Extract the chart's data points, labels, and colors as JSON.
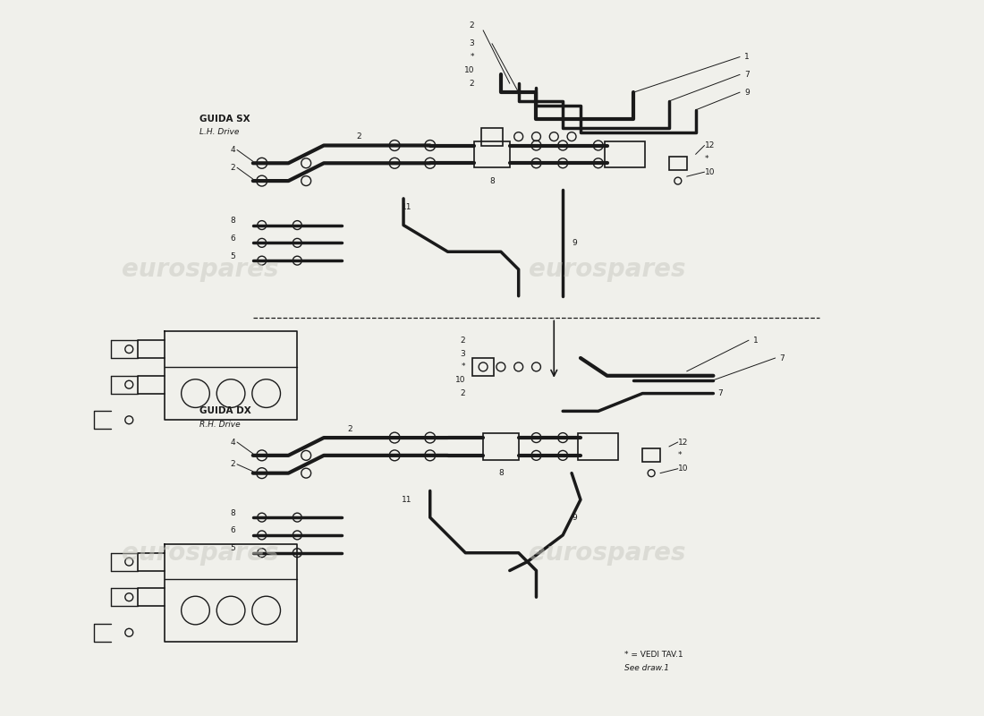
{
  "bg_color": "#f0f0eb",
  "line_color": "#1a1a1a",
  "watermark_color": "#c8c8c0",
  "label_sx": "GUIDA SX",
  "label_sx_sub": "L.H. Drive",
  "label_dx": "GUIDA DX",
  "label_dx_sub": "R.H. Drive",
  "footnote1": "* = VEDI TAV.1",
  "footnote2": "See draw.1",
  "pipe_lw": 3.0,
  "pipe_lw2": 2.5,
  "thin_lw": 0.8
}
